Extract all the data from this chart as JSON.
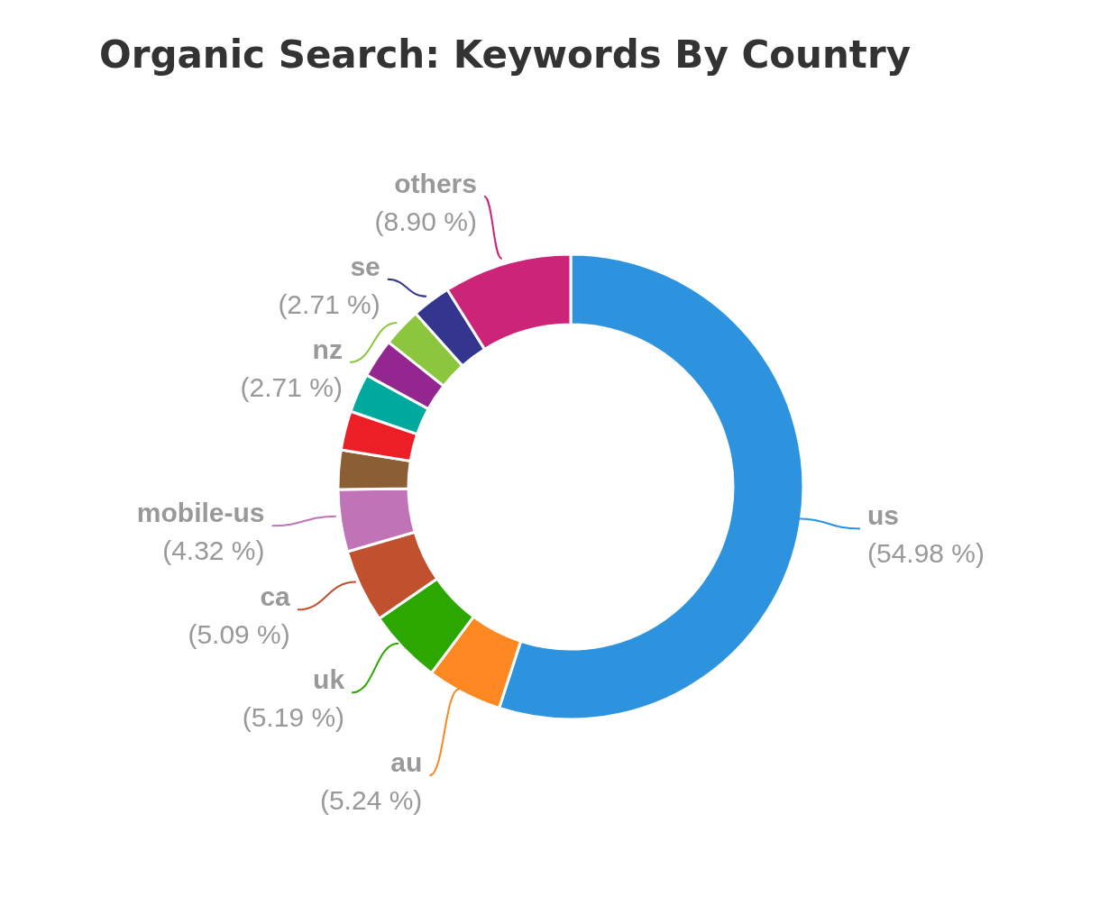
{
  "chart_data": {
    "type": "donut",
    "title": "Organic Search: Keywords By Country",
    "categories": [
      "us",
      "au",
      "uk",
      "ca",
      "mobile-us",
      null,
      null,
      null,
      null,
      "nz",
      "se",
      "others"
    ],
    "values": [
      54.98,
      5.24,
      5.19,
      5.09,
      4.32,
      2.72,
      2.72,
      2.71,
      2.71,
      2.71,
      2.71,
      8.9
    ],
    "value_labels": [
      "(54.98 %)",
      "(5.24 %)",
      "(5.19 %)",
      "(5.09 %)",
      "(4.32 %)",
      null,
      null,
      null,
      null,
      "(2.71 %)",
      "(2.71 %)",
      "(8.90 %)"
    ],
    "colors": [
      "#2e93de",
      "#fd8721",
      "#2ca700",
      "#c1502e",
      "#c173b8",
      "#8b5e34",
      "#ec1f26",
      "#00a99d",
      "#93278f",
      "#8cc63f",
      "#33358f",
      "#cc2478"
    ],
    "legend": false
  }
}
